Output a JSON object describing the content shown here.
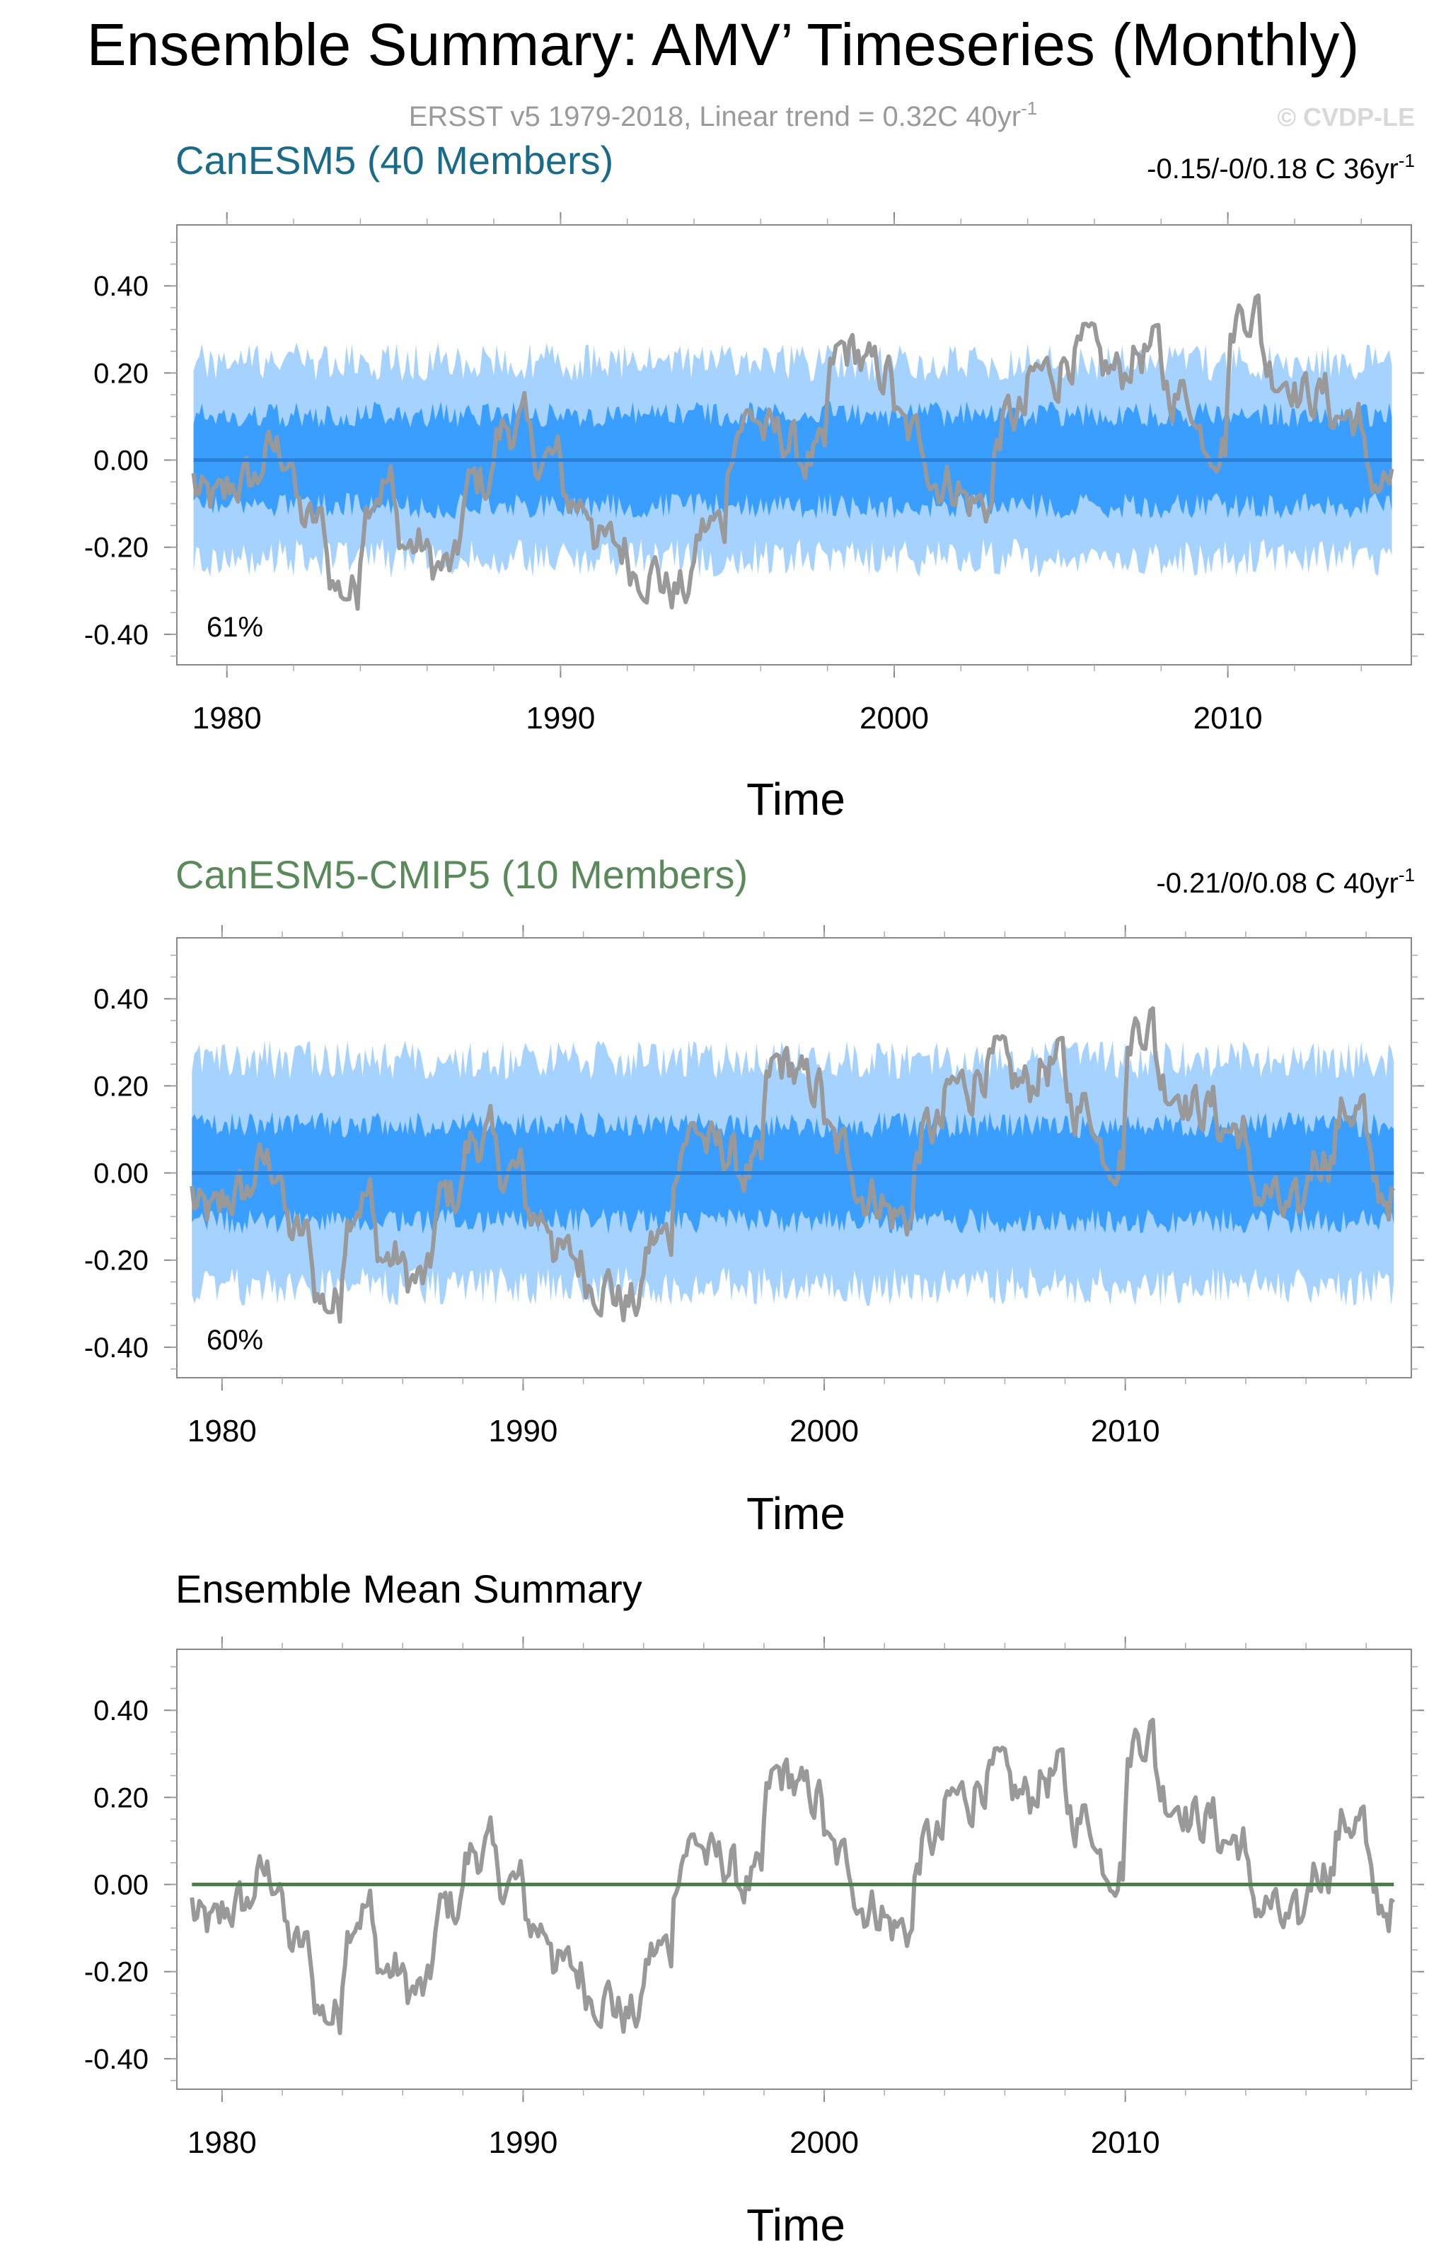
{
  "header": {
    "title": "Ensemble Summary: AMV’ Timeseries (Monthly)",
    "subtitle_main": "ERSST v5 1979-2018, Linear trend = 0.32C 40yr",
    "subtitle_exp": "-1",
    "watermark": "© CVDP-LE"
  },
  "colors": {
    "observed": "#999999",
    "band_outer": "#a6d2ff",
    "band_inner": "#3a9eff",
    "ens_mean_line": "#2a7fd6",
    "panel1_title": "#1a6b8a",
    "panel2_title": "#5a8a5a",
    "panel3_mean": "#4e7a4e"
  },
  "chart_data": [
    {
      "type": "area",
      "title": "CanESM5 (40 Members)",
      "trend_text": "-0.15/-0/0.18 C 36yr",
      "trend_exp": "-1",
      "xlabel": "Time",
      "ylabel": "",
      "x_start": 1979.0,
      "x_end": 2014.92,
      "xlim": [
        1978.5,
        2015.5
      ],
      "ylim": [
        -0.47,
        0.54
      ],
      "x_ticks": [
        "1980",
        "1990",
        "2000",
        "2010"
      ],
      "y_ticks": [
        "0.40",
        "0.20",
        "0.00",
        "-0.20",
        "-0.40"
      ],
      "percent_label": "61%",
      "band_inner_halfwidth": 0.105,
      "band_outer_halfwidth": 0.225,
      "ensemble_mean": 0.0,
      "series": [
        {
          "name": "",
          "role": "observed",
          "values": []
        }
      ]
    },
    {
      "type": "area",
      "title": "CanESM5-CMIP5 (10 Members)",
      "trend_text": "-0.21/0/0.08 C 40yr",
      "trend_exp": "-1",
      "xlabel": "Time",
      "ylabel": "",
      "x_start": 1979.0,
      "x_end": 2018.92,
      "xlim": [
        1978.5,
        2019.5
      ],
      "ylim": [
        -0.47,
        0.54
      ],
      "x_ticks": [
        "1980",
        "1990",
        "2000",
        "2010"
      ],
      "y_ticks": [
        "0.40",
        "0.20",
        "0.00",
        "-0.20",
        "-0.40"
      ],
      "percent_label": "60%",
      "band_inner_halfwidth": 0.11,
      "band_outer_halfwidth": 0.26,
      "ensemble_mean": 0.0,
      "series": [
        {
          "name": "",
          "role": "observed",
          "values": []
        }
      ]
    },
    {
      "type": "line",
      "title": "Ensemble Mean Summary",
      "xlabel": "Time",
      "ylabel": "",
      "x_start": 1979.0,
      "x_end": 2018.92,
      "xlim": [
        1978.5,
        2019.5
      ],
      "ylim": [
        -0.47,
        0.54
      ],
      "x_ticks": [
        "1980",
        "1990",
        "2000",
        "2010"
      ],
      "y_ticks": [
        "0.40",
        "0.20",
        "0.00",
        "-0.20",
        "-0.40"
      ],
      "ensemble_mean": 0.0,
      "series": [
        {
          "name": "",
          "role": "observed",
          "values": []
        }
      ]
    }
  ],
  "observed_annual_mean": {
    "years": [
      1979,
      1980,
      1981,
      1982,
      1983,
      1984,
      1985,
      1986,
      1987,
      1988,
      1989,
      1990,
      1991,
      1992,
      1993,
      1994,
      1995,
      1996,
      1997,
      1998,
      1999,
      2000,
      2001,
      2002,
      2003,
      2004,
      2005,
      2006,
      2007,
      2008,
      2009,
      2010,
      2011,
      2012,
      2013,
      2014,
      2015,
      2016,
      2017,
      2018
    ],
    "values": [
      -0.1,
      -0.05,
      0.02,
      -0.15,
      -0.3,
      -0.05,
      -0.2,
      -0.25,
      -0.05,
      0.08,
      0.0,
      -0.1,
      -0.2,
      -0.25,
      -0.3,
      -0.15,
      0.1,
      0.05,
      0.0,
      0.25,
      0.2,
      0.05,
      -0.05,
      -0.1,
      0.1,
      0.2,
      0.25,
      0.2,
      0.25,
      0.15,
      0.05,
      0.35,
      0.2,
      0.15,
      0.1,
      -0.05,
      -0.1,
      0.05,
      0.15,
      -0.05
    ]
  }
}
